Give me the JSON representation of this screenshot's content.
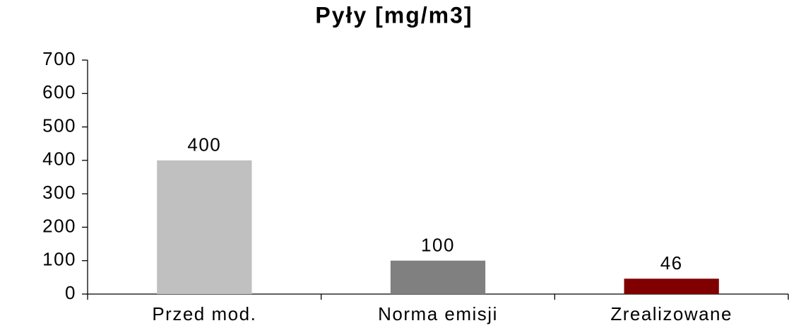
{
  "chart_data": {
    "type": "bar",
    "title": "Pyły [mg/m3]",
    "categories": [
      "Przed mod.",
      "Norma emisji",
      "Zrealizowane"
    ],
    "values": [
      400,
      100,
      46
    ],
    "colors": [
      "#c0c0c0",
      "#808080",
      "#800000"
    ],
    "ylim": [
      0,
      700
    ],
    "yticks": [
      0,
      100,
      200,
      300,
      400,
      500,
      600,
      700
    ],
    "grid": false
  }
}
